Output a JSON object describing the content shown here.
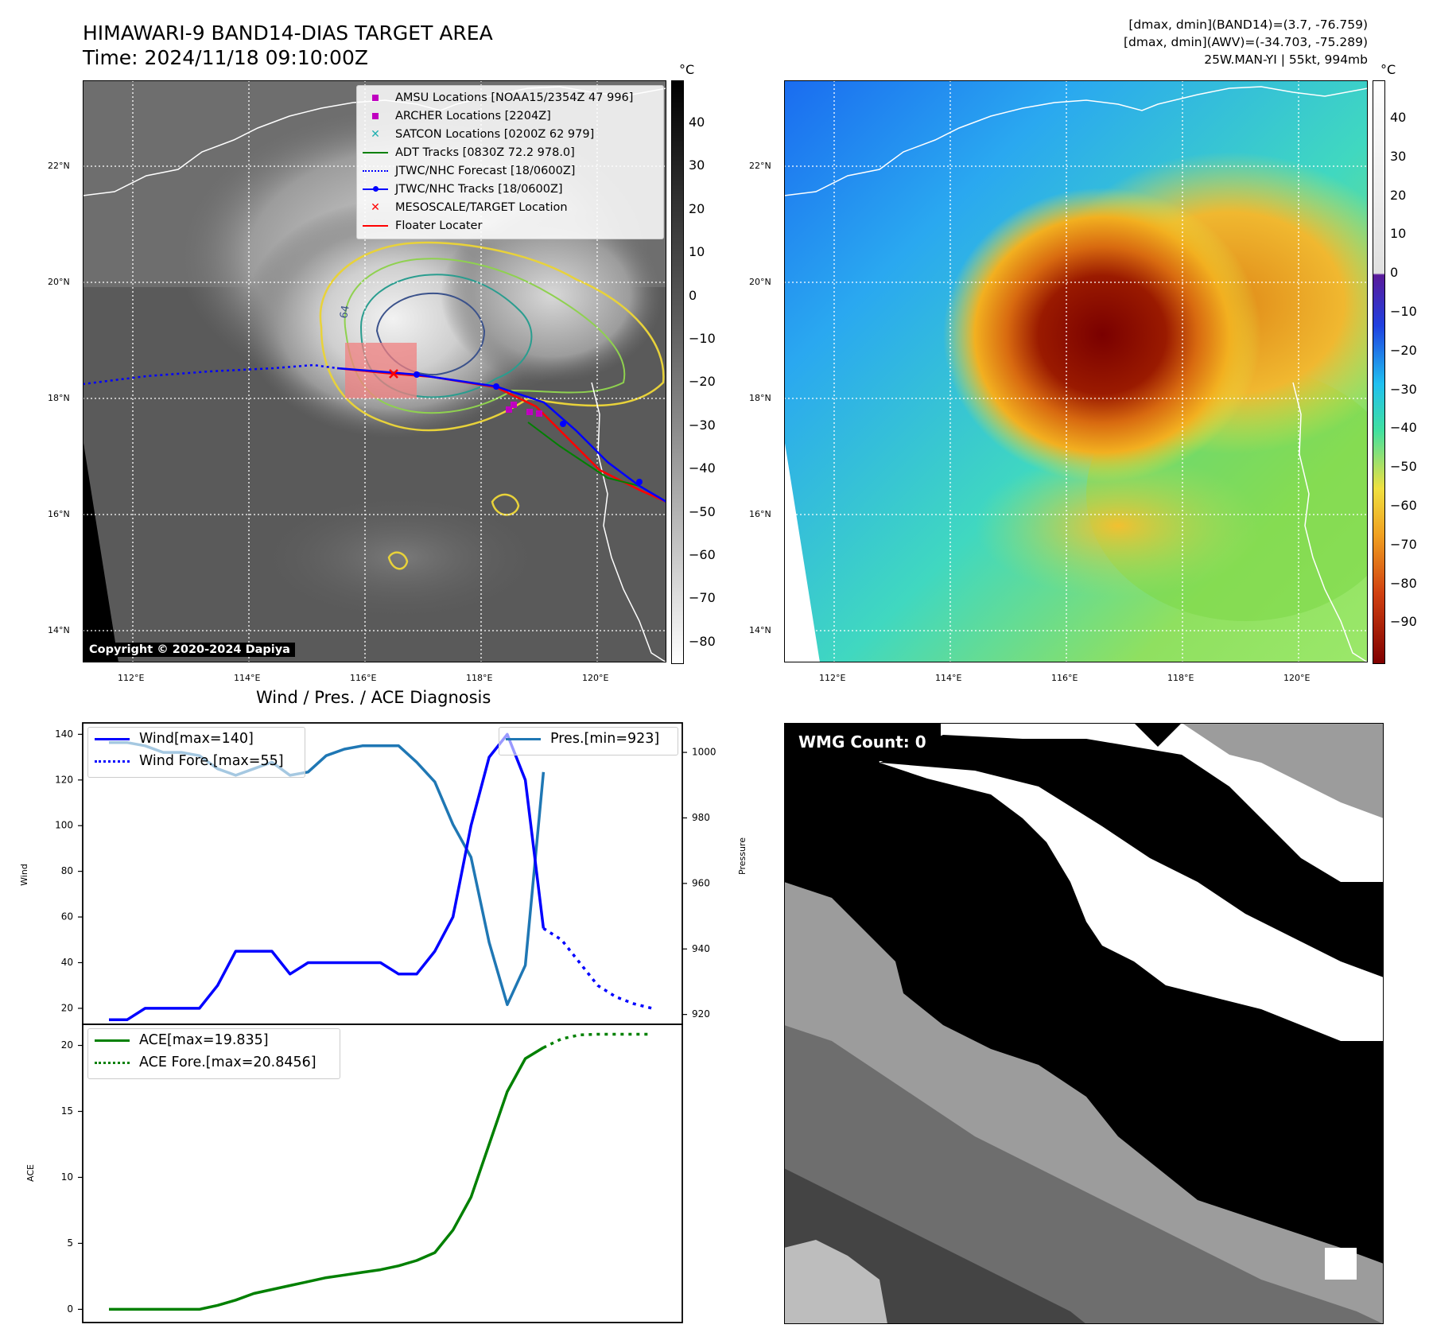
{
  "header": {
    "title": "HIMAWARI-9 BAND14-DIAS TARGET AREA",
    "time": "Time: 2024/11/18 09:10:00Z",
    "stats_line1": "[dmax, dmin](BAND14)=(3.7, -76.759)",
    "stats_line2": "[dmax, dmin](AWV)=(-34.703, -75.289)",
    "stats_line3": "25W.MAN-YI | 55kt, 994mb"
  },
  "map_left": {
    "lat_labels": [
      "22°N",
      "20°N",
      "18°N",
      "16°N",
      "14°N"
    ],
    "lon_labels": [
      "112°E",
      "114°E",
      "116°E",
      "118°E",
      "120°E"
    ],
    "copyright": "Copyright © 2020-2024 Dapiya",
    "colorbar_unit": "°C",
    "colorbar_ticks": [
      "40",
      "30",
      "20",
      "10",
      "0",
      "−10",
      "−20",
      "−30",
      "−40",
      "−50",
      "−60",
      "−70",
      "−80"
    ],
    "legend": [
      {
        "label": "AMSU Locations [NOAA15/2354Z 47 996]",
        "marker": "square",
        "color": "#c000c0"
      },
      {
        "label": "ARCHER Locations [2204Z]",
        "marker": "square",
        "color": "#c000c0"
      },
      {
        "label": "SATCON Locations [0200Z 62 979]",
        "marker": "x",
        "color": "#20b0b0"
      },
      {
        "label": "ADT Tracks [0830Z 72.2 978.0]",
        "marker": "line",
        "color": "#008000"
      },
      {
        "label": "JTWC/NHC Forecast [18/0600Z]",
        "marker": "dotted",
        "color": "#0000ff"
      },
      {
        "label": "JTWC/NHC Tracks [18/0600Z]",
        "marker": "line-dot",
        "color": "#0000ff"
      },
      {
        "label": "MESOSCALE/TARGET Location",
        "marker": "x",
        "color": "#ff0000"
      },
      {
        "label": "Floater Locater",
        "marker": "line",
        "color": "#ff0000"
      }
    ],
    "contour_label": "64"
  },
  "map_right": {
    "lat_labels": [
      "22°N",
      "20°N",
      "18°N",
      "16°N",
      "14°N"
    ],
    "lon_labels": [
      "112°E",
      "114°E",
      "116°E",
      "118°E",
      "120°E"
    ],
    "colorbar_unit": "°C",
    "colorbar_ticks": [
      "40",
      "30",
      "20",
      "10",
      "0",
      "−10",
      "−20",
      "−30",
      "−40",
      "−50",
      "−60",
      "−70",
      "−80",
      "−90"
    ]
  },
  "chart_data": [
    {
      "type": "line",
      "title": "Wind / Pres. / ACE Diagnosis",
      "ylabel": "Wind",
      "ylabel_right": "Pressure",
      "ylim": [
        13,
        145
      ],
      "ylim_right": [
        917,
        1009
      ],
      "yticks": [
        20,
        40,
        60,
        80,
        100,
        120,
        140
      ],
      "yticks_right": [
        920,
        940,
        960,
        980,
        1000
      ],
      "series": [
        {
          "name": "Wind[max=140]",
          "color": "#0000ff",
          "style": "solid",
          "x": [
            0,
            1,
            2,
            3,
            4,
            5,
            6,
            7,
            8,
            9,
            10,
            11,
            12,
            13,
            14,
            15,
            16,
            17,
            18,
            19,
            20,
            21,
            22,
            23,
            24
          ],
          "values": [
            15,
            15,
            20,
            20,
            20,
            20,
            30,
            45,
            45,
            45,
            35,
            40,
            40,
            40,
            40,
            40,
            35,
            35,
            45,
            60,
            100,
            130,
            140,
            120,
            55
          ]
        },
        {
          "name": "Wind Fore.[max=55]",
          "color": "#0000ff",
          "style": "dotted",
          "x": [
            24,
            25,
            26,
            27,
            28,
            29,
            30
          ],
          "values": [
            55,
            50,
            40,
            30,
            25,
            22,
            20
          ]
        },
        {
          "name": "Pres.[min=923]",
          "color": "#1f77b4",
          "style": "solid",
          "axis": "right",
          "x": [
            0,
            1,
            2,
            3,
            4,
            5,
            6,
            7,
            8,
            9,
            10,
            11,
            12,
            13,
            14,
            15,
            16,
            17,
            18,
            19,
            20,
            21,
            22,
            23,
            24
          ],
          "values": [
            1003,
            1003,
            1002,
            1000,
            1000,
            999,
            995,
            993,
            995,
            997,
            993,
            994,
            999,
            1001,
            1002,
            1002,
            1002,
            997,
            991,
            978,
            968,
            942,
            923,
            935,
            994
          ]
        }
      ]
    },
    {
      "type": "line",
      "title": "",
      "ylabel": "ACE",
      "ylim": [
        -1,
        21.6
      ],
      "yticks": [
        0,
        5,
        10,
        15,
        20
      ],
      "series": [
        {
          "name": "ACE[max=19.835]",
          "color": "#008000",
          "style": "solid",
          "x": [
            0,
            1,
            2,
            3,
            4,
            5,
            6,
            7,
            8,
            9,
            10,
            11,
            12,
            13,
            14,
            15,
            16,
            17,
            18,
            19,
            20,
            21,
            22,
            23,
            24
          ],
          "values": [
            0,
            0,
            0,
            0,
            0,
            0,
            0.3,
            0.7,
            1.2,
            1.5,
            1.8,
            2.1,
            2.4,
            2.6,
            2.8,
            3.0,
            3.3,
            3.7,
            4.3,
            6.0,
            8.5,
            12.5,
            16.5,
            19.0,
            19.835
          ]
        },
        {
          "name": "ACE Fore.[max=20.8456]",
          "color": "#008000",
          "style": "dotted",
          "x": [
            24,
            25,
            26,
            27,
            28,
            29,
            30
          ],
          "values": [
            19.835,
            20.5,
            20.8,
            20.8456,
            20.8456,
            20.8456,
            20.8456
          ]
        }
      ]
    }
  ],
  "wmg": {
    "label": "WMG Count: 0"
  }
}
